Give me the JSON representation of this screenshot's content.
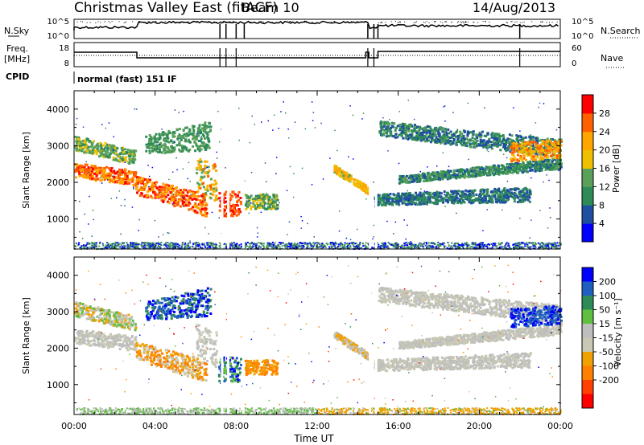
{
  "header": {
    "station": "Christmas Valley East (fitACF)",
    "beam": "Beam 10",
    "date": "14/Aug/2013"
  },
  "strip_labels": {
    "nsky": "N.Sky",
    "nsky_ticks": [
      "10^5",
      "10^0"
    ],
    "nsearch": "N.Search",
    "nsearch_ticks": [
      "10^5",
      "10^0"
    ],
    "freq_line1": "Freq.",
    "freq_line2": "[MHz]",
    "freq_ticks": [
      "18",
      "8"
    ],
    "nave": "Nave",
    "nave_ticks": [
      "60",
      "0"
    ],
    "cpid": "CPID",
    "cpid_value": "normal (fast) 151 IF"
  },
  "colors": {
    "power_scale": [
      "#0000ff",
      "#1e4fa0",
      "#2e8b57",
      "#5aa05a",
      "#f0c000",
      "#ffa500",
      "#ff6000",
      "#ff0000"
    ],
    "velocity_scale": [
      "#0000ff",
      "#1f5fc0",
      "#2e8b57",
      "#5fbf3f",
      "#bebebe",
      "#c8c8b4",
      "#f0a000",
      "#ff7f00",
      "#ff4000",
      "#ff0000"
    ]
  },
  "chart_data": [
    {
      "type": "heatmap",
      "title": "",
      "ylabel": "Slant Range [km]",
      "xlabel": "",
      "x_range": [
        "00:00",
        "24:00"
      ],
      "ylim": [
        180,
        4500
      ],
      "y_ticks": [
        "1000",
        "2000",
        "3000",
        "4000"
      ],
      "x_ticks": [
        "00:00",
        "04:00",
        "08:00",
        "12:00",
        "16:00",
        "20:00",
        "00:00"
      ],
      "colorbar": {
        "label": "Power [dB]",
        "range": [
          0,
          32
        ],
        "ticks": [
          "4",
          "8",
          "12",
          "16",
          "20",
          "24",
          "28"
        ]
      }
    },
    {
      "type": "heatmap",
      "title": "",
      "ylabel": "Slant Range [km]",
      "xlabel": "Time UT",
      "x_range": [
        "00:00",
        "24:00"
      ],
      "ylim": [
        180,
        4500
      ],
      "y_ticks": [
        "1000",
        "2000",
        "3000",
        "4000"
      ],
      "x_ticks": [
        "00:00",
        "04:00",
        "08:00",
        "12:00",
        "16:00",
        "20:00",
        "00:00"
      ],
      "colorbar": {
        "label": "Velocity [m s⁻¹]",
        "range": [
          -250,
          250
        ],
        "ticks": [
          "200",
          "100",
          "50",
          "15",
          "-15",
          "-50",
          "-100",
          "-200"
        ]
      }
    }
  ]
}
